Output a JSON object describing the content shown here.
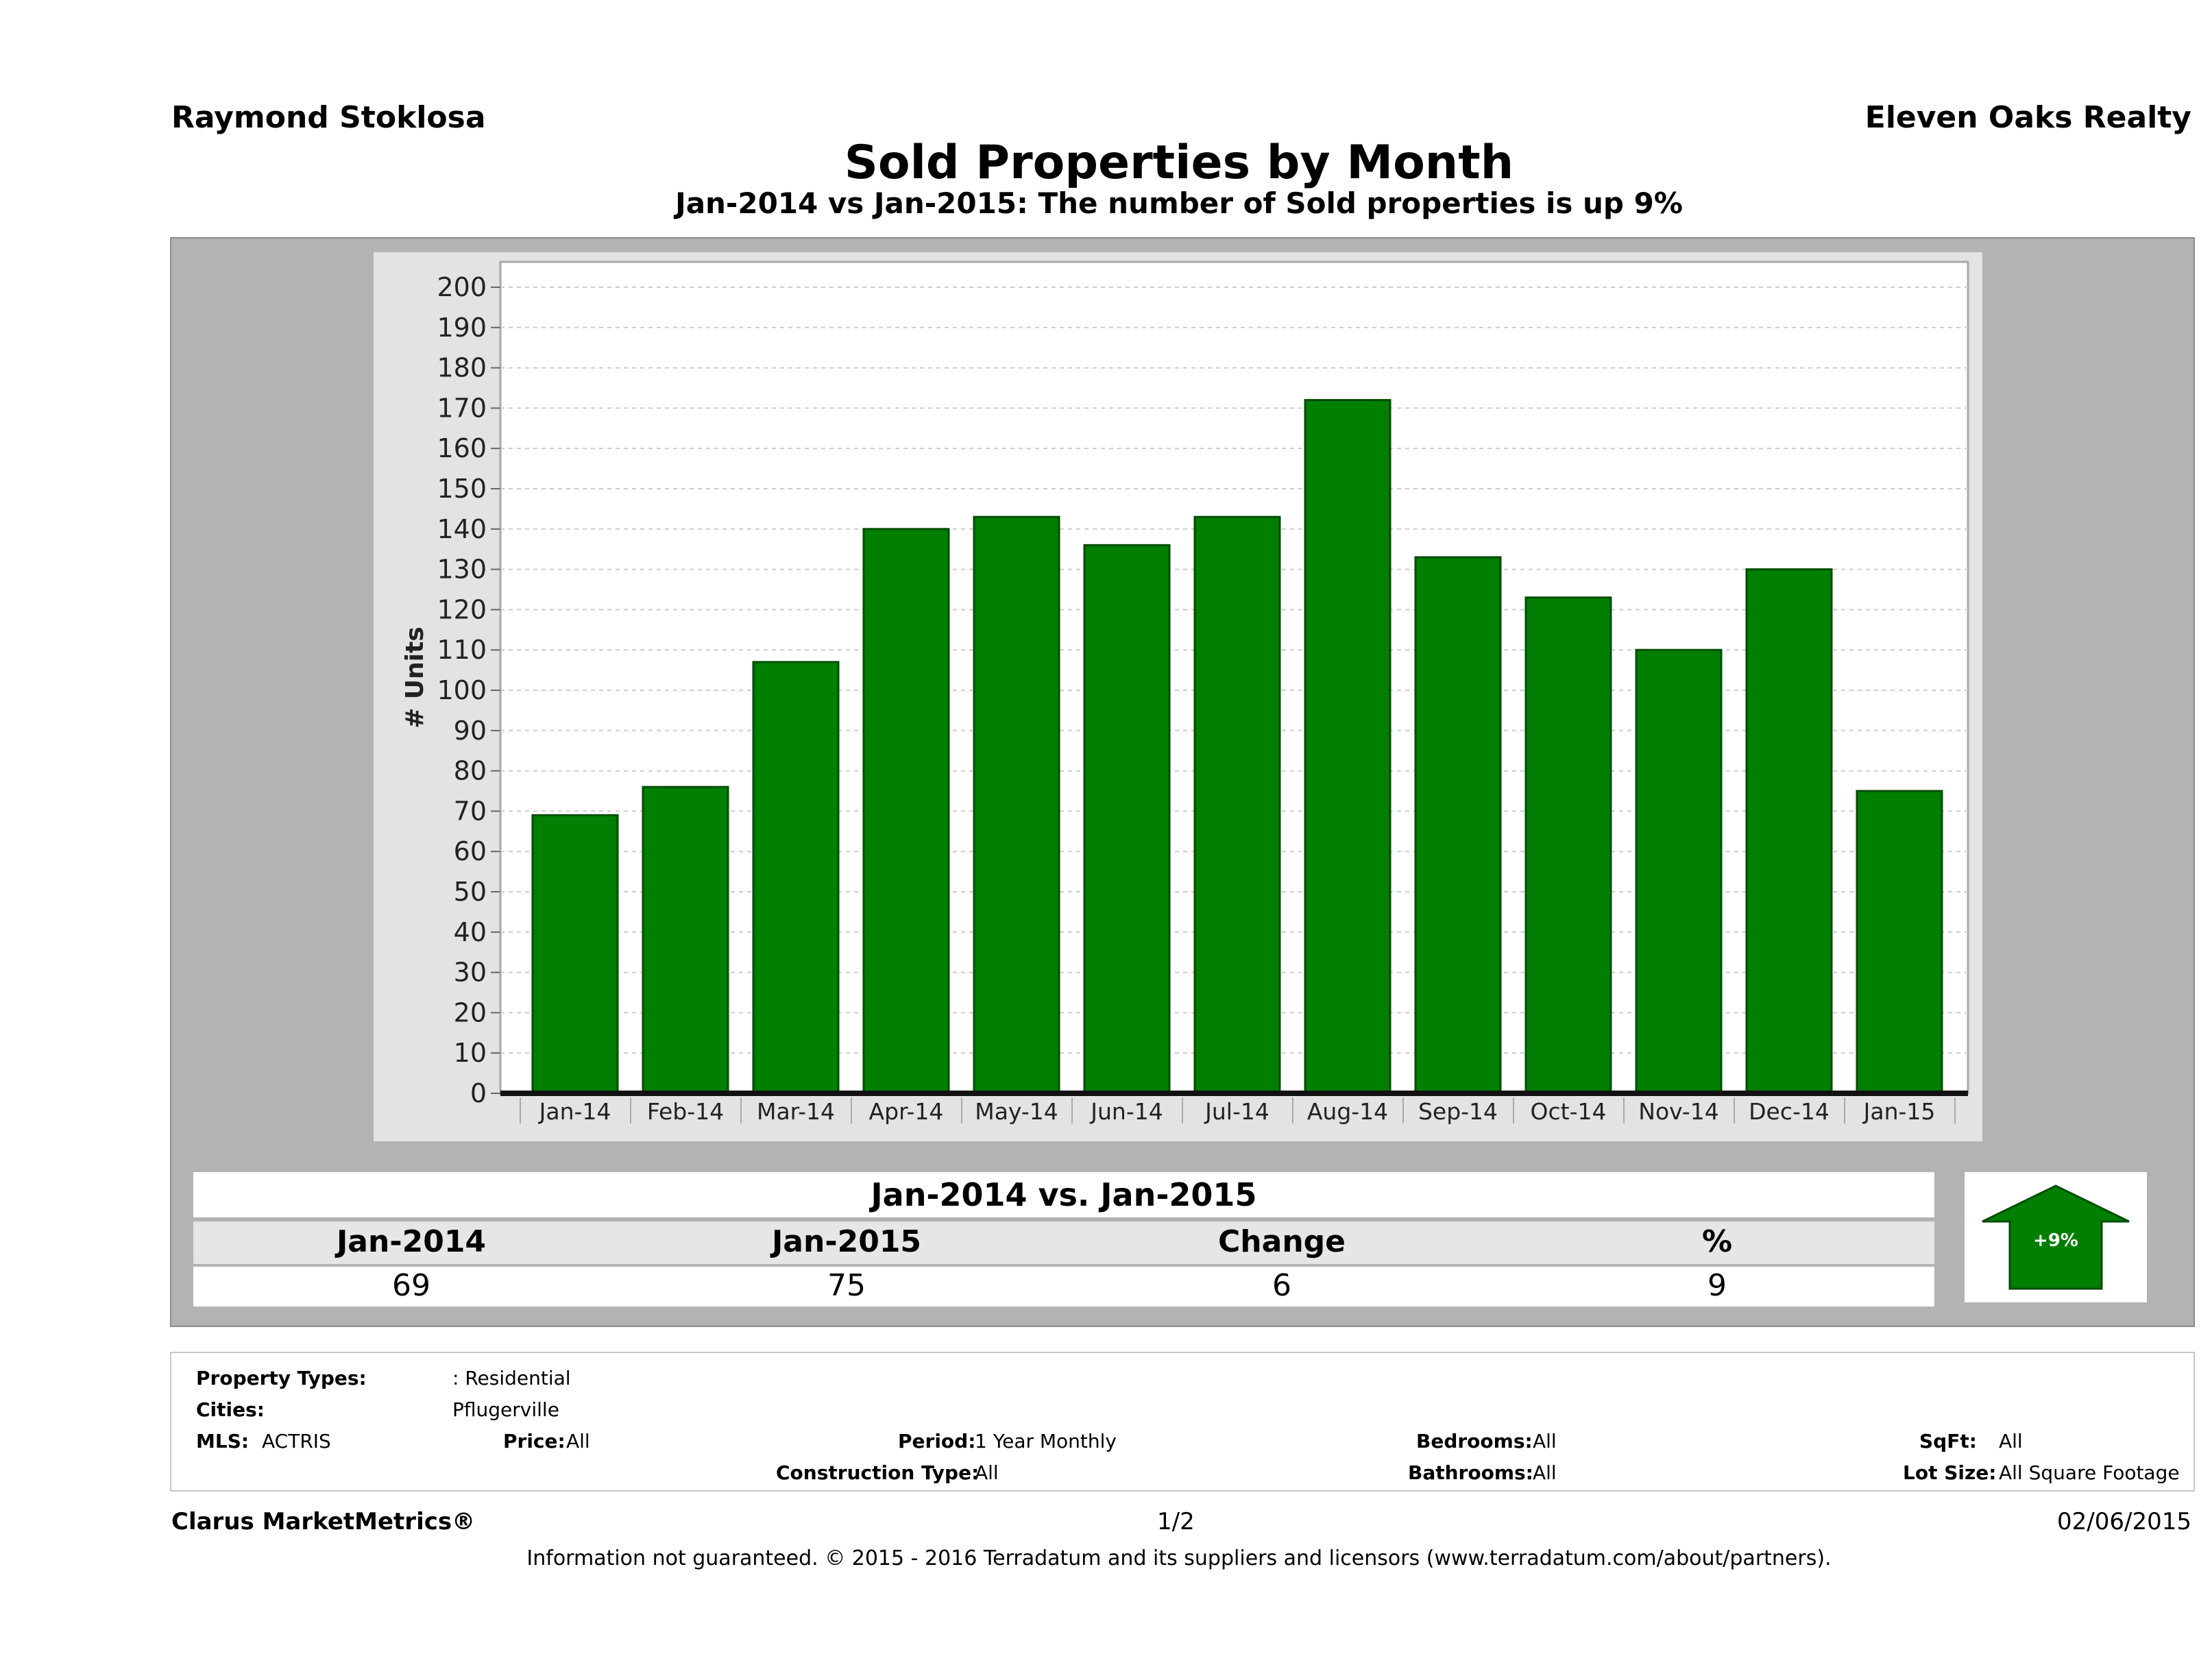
{
  "header": {
    "agent": "Raymond Stoklosa",
    "brokerage": "Eleven Oaks Realty",
    "title": "Sold Properties by Month",
    "subtitle": "Jan-2014 vs Jan-2015: The number of Sold  properties is up 9%"
  },
  "chart_data": {
    "type": "bar",
    "categories": [
      "Jan-14",
      "Feb-14",
      "Mar-14",
      "Apr-14",
      "May-14",
      "Jun-14",
      "Jul-14",
      "Aug-14",
      "Sep-14",
      "Oct-14",
      "Nov-14",
      "Dec-14",
      "Jan-15"
    ],
    "values": [
      69,
      76,
      107,
      140,
      143,
      136,
      143,
      172,
      133,
      123,
      110,
      130,
      75
    ],
    "ylabel": "# Units",
    "ylim": [
      0,
      200
    ],
    "yticks": [
      0,
      10,
      20,
      30,
      40,
      50,
      60,
      70,
      80,
      90,
      100,
      110,
      120,
      130,
      140,
      150,
      160,
      170,
      180,
      190,
      200
    ],
    "grid": true,
    "bar_color": "#007f00"
  },
  "comparison": {
    "heading": "Jan-2014 vs. Jan-2015",
    "columns": [
      "Jan-2014",
      "Jan-2015",
      "Change",
      "%"
    ],
    "values": [
      "69",
      "75",
      "6",
      "9"
    ],
    "badge": "+9%",
    "badge_color": "#007f00"
  },
  "filters": {
    "property_types_label": "Property Types:",
    "property_types_value": ": Residential",
    "cities_label": "Cities:",
    "cities_value": "Pflugerville",
    "mls_label": "MLS:",
    "mls_value": "ACTRIS",
    "price_label": "Price:",
    "price_value": "All",
    "period_label": "Period:",
    "period_value": "1 Year Monthly",
    "construction_label": "Construction Type:",
    "construction_value": "All",
    "bedrooms_label": "Bedrooms:",
    "bedrooms_value": "All",
    "bathrooms_label": "Bathrooms:",
    "bathrooms_value": "All",
    "sqft_label": "SqFt:",
    "sqft_value": "All",
    "lotsize_label": "Lot Size:",
    "lotsize_value": "All Square Footage"
  },
  "footer": {
    "product": "Clarus MarketMetrics®",
    "page": "1/2",
    "date": "02/06/2015",
    "disclaimer": "Information not guaranteed. © 2015 - 2016 Terradatum and its suppliers and licensors (www.terradatum.com/about/partners)."
  }
}
